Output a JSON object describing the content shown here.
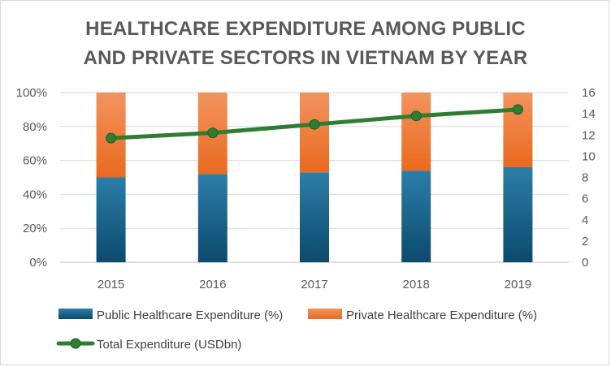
{
  "chart_data": {
    "type": "bar",
    "title_lines": [
      "HEALTHCARE EXPENDITURE AMONG PUBLIC",
      "AND PRIVATE SECTORS IN VIETNAM BY YEAR"
    ],
    "categories": [
      "2015",
      "2016",
      "2017",
      "2018",
      "2019"
    ],
    "series": [
      {
        "name": "Public Healthcare Expenditure (%)",
        "kind": "stacked-bar",
        "axis": "left",
        "color": "#1f6287",
        "values": [
          50,
          52,
          53,
          54,
          56
        ]
      },
      {
        "name": "Private Healthcare Expenditure (%)",
        "kind": "stacked-bar",
        "axis": "left",
        "color": "#f1803f",
        "values": [
          50,
          48,
          47,
          46,
          44
        ]
      },
      {
        "name": "Total Expenditure (USDbn)",
        "kind": "line",
        "axis": "right",
        "color": "#2e7d32",
        "values": [
          11.7,
          12.2,
          13.0,
          13.8,
          14.4
        ]
      }
    ],
    "y_left": {
      "min": 0,
      "max": 100,
      "step": 20,
      "tick_labels": [
        "0%",
        "20%",
        "40%",
        "60%",
        "80%",
        "100%"
      ]
    },
    "y_right": {
      "min": 0,
      "max": 16,
      "step": 2,
      "tick_labels": [
        "0",
        "2",
        "4",
        "6",
        "8",
        "10",
        "12",
        "14",
        "16"
      ]
    },
    "grid": true,
    "legend_position": "bottom"
  }
}
